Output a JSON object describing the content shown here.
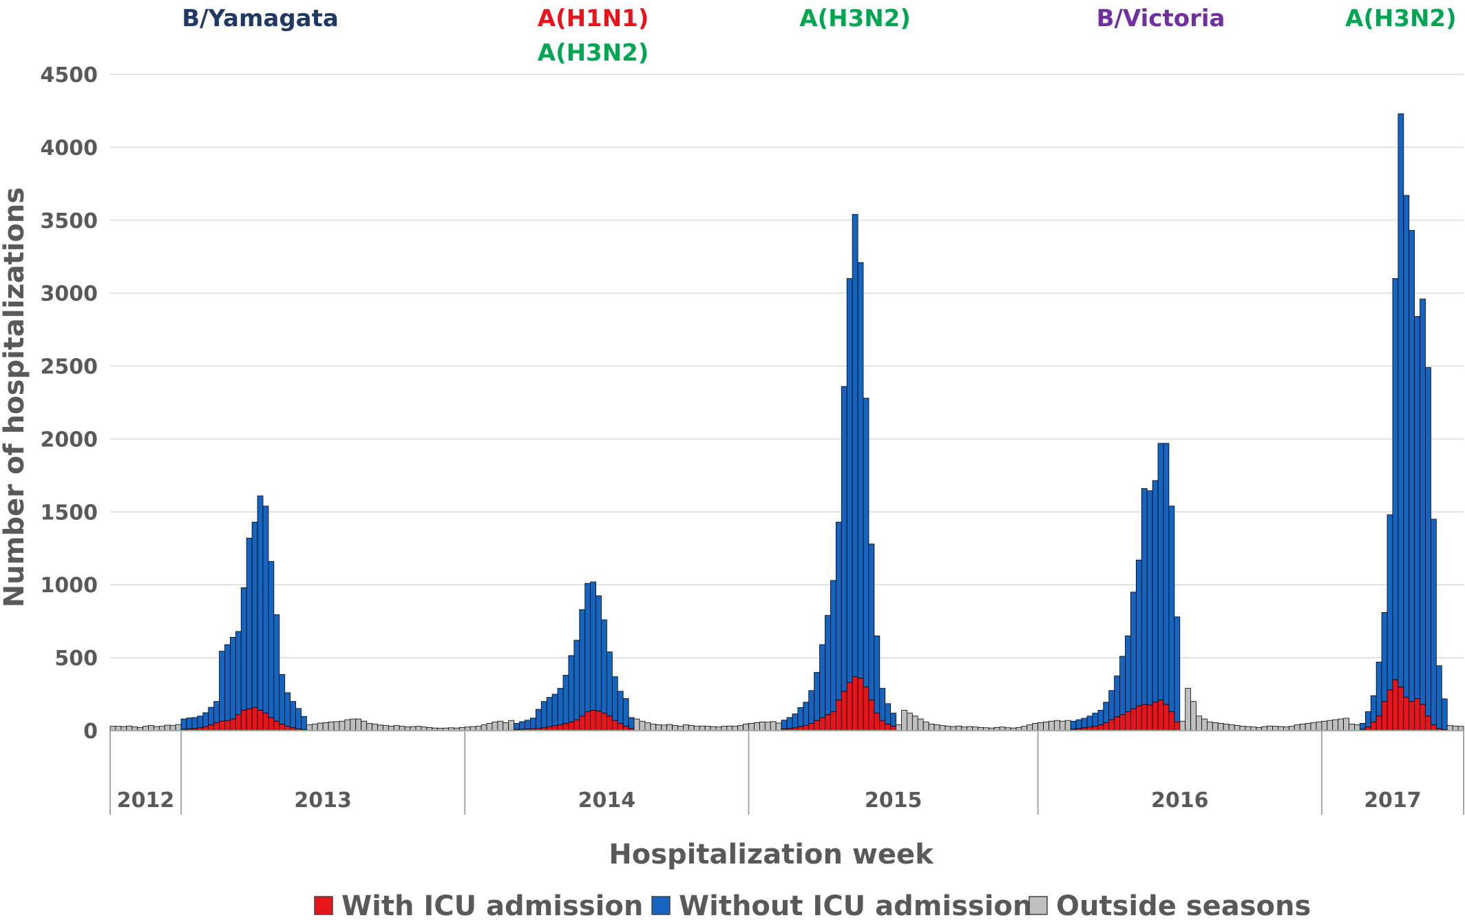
{
  "chart_data": {
    "type": "bar",
    "stacked": true,
    "xlabel": "Hospitalization week",
    "ylabel": "Number of hospitalizations",
    "ylim": [
      0,
      4500
    ],
    "yticks": [
      0,
      500,
      1000,
      1500,
      2000,
      2500,
      3000,
      3500,
      4000,
      4500
    ],
    "grid": true,
    "legend_position": "bottom",
    "years": [
      {
        "label": "2012",
        "weeks": 13
      },
      {
        "label": "2013",
        "weeks": 52
      },
      {
        "label": "2014",
        "weeks": 52
      },
      {
        "label": "2015",
        "weeks": 53
      },
      {
        "label": "2016",
        "weeks": 52
      },
      {
        "label": "2017",
        "weeks": 26
      }
    ],
    "season_labels": [
      {
        "lines": [
          "B/Yamagata"
        ],
        "color": "#1f3864"
      },
      {
        "lines": [
          "A(H1N1)",
          "A(H3N2)"
        ],
        "colors": [
          "#e8141c",
          "#00a651"
        ]
      },
      {
        "lines": [
          "A(H3N2)"
        ],
        "color": "#00a651"
      },
      {
        "lines": [
          "B/Victoria"
        ],
        "color": "#7030a0"
      },
      {
        "lines": [
          "A(H3N2)"
        ],
        "color": "#00a651"
      }
    ],
    "series": [
      {
        "name": "With ICU admission",
        "color": "#e8141c"
      },
      {
        "name": "Without ICU admission",
        "color": "#1565c0"
      },
      {
        "name": "Outside seasons",
        "color": "#bfbfbf"
      }
    ],
    "seasons": [
      {
        "start_week": 13,
        "icu": [
          10,
          12,
          15,
          20,
          28,
          40,
          55,
          65,
          70,
          80,
          110,
          140,
          150,
          160,
          140,
          120,
          90,
          65,
          45,
          30,
          20,
          12,
          8
        ],
        "no_icu": [
          70,
          75,
          75,
          80,
          95,
          120,
          145,
          480,
          520,
          560,
          570,
          840,
          1170,
          1270,
          1470,
          1420,
          1070,
          730,
          340,
          230,
          180,
          140,
          90
        ]
      },
      {
        "start_week": 74,
        "icu": [
          8,
          10,
          12,
          14,
          16,
          20,
          28,
          35,
          40,
          50,
          60,
          75,
          100,
          130,
          140,
          135,
          120,
          100,
          70,
          50,
          30,
          15
        ],
        "no_icu": [
          42,
          52,
          60,
          72,
          130,
          180,
          200,
          215,
          250,
          330,
          455,
          545,
          730,
          880,
          880,
          790,
          640,
          440,
          300,
          220,
          190,
          75
        ]
      },
      {
        "start_week": 123,
        "icu": [
          12,
          15,
          20,
          28,
          35,
          50,
          70,
          90,
          110,
          130,
          210,
          270,
          330,
          370,
          360,
          300,
          210,
          120,
          70,
          45,
          30
        ],
        "no_icu": [
          60,
          75,
          95,
          130,
          160,
          225,
          330,
          500,
          680,
          900,
          1220,
          2090,
          2770,
          3170,
          2850,
          1980,
          1070,
          530,
          220,
          140,
          90
        ]
      },
      {
        "start_week": 176,
        "icu": [
          10,
          15,
          20,
          25,
          30,
          40,
          55,
          75,
          95,
          110,
          130,
          150,
          170,
          180,
          175,
          195,
          210,
          180,
          130,
          60
        ],
        "no_icu": [
          55,
          60,
          65,
          75,
          90,
          100,
          140,
          200,
          280,
          400,
          520,
          800,
          1000,
          1480,
          1470,
          1520,
          1760,
          1790,
          1410,
          720
        ]
      },
      {
        "start_week": 229,
        "icu": [
          10,
          25,
          60,
          100,
          200,
          280,
          350,
          300,
          230,
          200,
          220,
          180,
          100,
          40,
          15,
          8
        ],
        "no_icu": [
          40,
          105,
          180,
          370,
          610,
          1200,
          2750,
          3930,
          3440,
          3230,
          2620,
          2780,
          2390,
          1410,
          430,
          210
        ]
      }
    ],
    "outside_values": [
      30,
      30,
      28,
      32,
      26,
      22,
      30,
      35,
      28,
      30,
      38,
      35,
      42,
      40,
      45,
      52,
      55,
      60,
      62,
      65,
      75,
      80,
      80,
      65,
      50,
      45,
      38,
      35,
      30,
      35,
      30,
      25,
      28,
      30,
      25,
      22,
      18,
      16,
      18,
      20,
      18,
      22,
      25,
      28,
      30,
      40,
      50,
      60,
      65,
      55,
      70,
      80,
      65,
      55,
      45,
      40,
      38,
      42,
      35,
      30,
      40,
      35,
      30,
      32,
      30,
      28,
      25,
      30,
      32,
      30,
      35,
      45,
      50,
      55,
      60,
      58,
      62,
      52,
      40,
      140,
      120,
      100,
      80,
      60,
      45,
      40,
      35,
      30,
      28,
      32,
      25,
      28,
      25,
      22,
      20,
      18,
      22,
      25,
      20,
      18,
      22,
      30,
      40,
      50,
      55,
      60,
      65,
      70,
      65,
      70,
      65,
      290,
      200,
      100,
      80,
      60,
      55,
      50,
      45,
      40,
      35,
      30,
      28,
      25,
      22,
      28,
      32,
      30,
      28,
      25,
      30,
      40,
      45,
      50,
      55,
      60,
      65,
      70,
      75,
      80,
      85,
      45,
      40,
      35,
      32,
      30,
      28,
      25,
      25,
      22,
      20,
      22,
      18,
      20,
      18,
      20,
      22
    ]
  }
}
